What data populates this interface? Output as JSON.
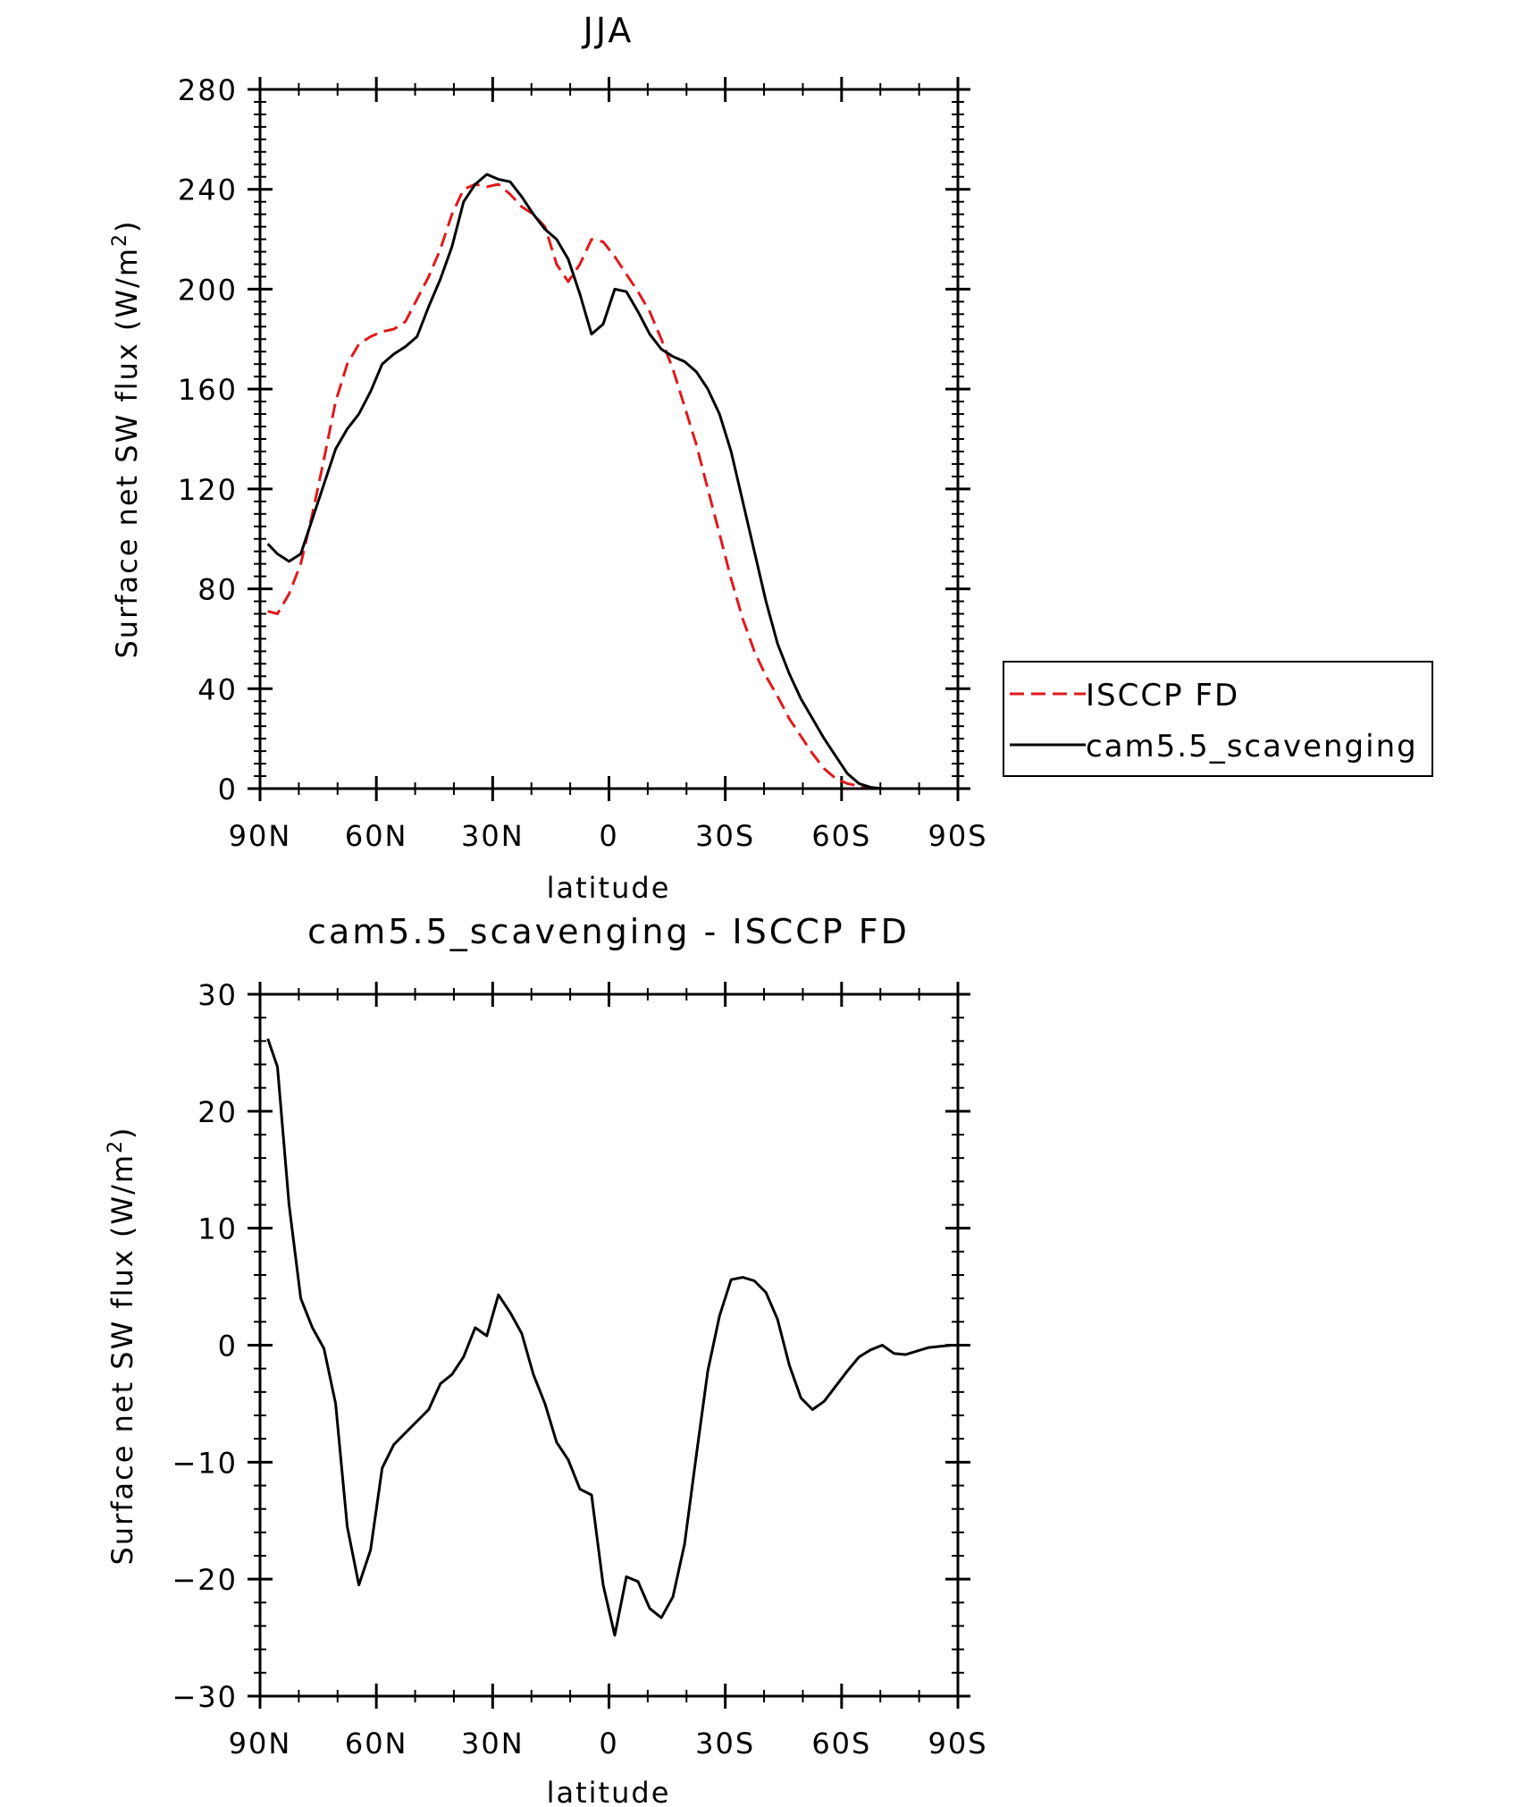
{
  "chart_data": [
    {
      "type": "line",
      "title": "JJA",
      "xlabel": "latitude",
      "ylabel": "Surface net SW flux (W/m",
      "ylabel_sup": "2",
      "ylabel_close": ")",
      "x_ticks": [
        {
          "value": 90,
          "label": "90N"
        },
        {
          "value": 60,
          "label": "60N"
        },
        {
          "value": 30,
          "label": "30N"
        },
        {
          "value": 0,
          "label": "0"
        },
        {
          "value": -30,
          "label": "30S"
        },
        {
          "value": -60,
          "label": "60S"
        },
        {
          "value": -90,
          "label": "90S"
        }
      ],
      "xlim": [
        90,
        -90
      ],
      "ylim": [
        0,
        280
      ],
      "y_ticks": [
        0,
        40,
        80,
        120,
        160,
        200,
        240,
        280
      ],
      "y_minor": 8,
      "legend": {
        "placement": "right, outside plot",
        "entries": [
          "ISCCP FD",
          "cam5.5_scavenging"
        ]
      },
      "series": [
        {
          "name": "ISCCP FD",
          "color": "#e0191c",
          "dash": true,
          "x": [
            88,
            85.5,
            82.5,
            79.5,
            76.5,
            73.5,
            70.5,
            67.5,
            64.5,
            61.5,
            58.5,
            55.5,
            52.5,
            49.5,
            46.5,
            43.5,
            40.5,
            37.5,
            34.5,
            31.5,
            28.5,
            25.5,
            22.5,
            19.5,
            16.5,
            13.5,
            10.5,
            7.5,
            4.5,
            1.5,
            -1.5,
            -4.5,
            -7.5,
            -10.5,
            -13.5,
            -16.5,
            -19.5,
            -22.5,
            -25.5,
            -28.5,
            -31.5,
            -34.5,
            -37.5,
            -40.5,
            -43.5,
            -46.5,
            -49.5,
            -52.5,
            -55.5,
            -58.5,
            -61.5,
            -64.5,
            -67.5,
            -70.5,
            -73.5,
            -76.5,
            -79.5,
            -82.5,
            -85.5,
            -88.5
          ],
          "values": [
            71,
            70,
            78,
            90,
            110,
            132,
            155,
            170,
            178,
            181,
            183,
            184,
            187,
            196,
            205,
            216,
            230,
            240,
            242,
            241,
            242,
            238,
            233,
            230,
            225,
            210,
            203,
            210,
            220,
            219,
            213,
            206,
            199,
            191,
            180,
            168,
            153,
            138,
            120,
            102,
            84,
            68,
            55,
            45,
            37,
            28,
            21,
            14,
            8,
            4,
            2,
            1,
            0,
            0,
            0,
            0,
            0,
            0,
            0,
            0
          ]
        },
        {
          "name": "cam5.5_scavenging",
          "color": "#000000",
          "dash": false,
          "x": [
            88,
            85.5,
            82.5,
            79.5,
            76.5,
            73.5,
            70.5,
            67.5,
            64.5,
            61.5,
            58.5,
            55.5,
            52.5,
            49.5,
            46.5,
            43.5,
            40.5,
            37.5,
            34.5,
            31.5,
            28.5,
            25.5,
            22.5,
            19.5,
            16.5,
            13.5,
            10.5,
            7.5,
            4.5,
            1.5,
            -1.5,
            -4.5,
            -7.5,
            -10.5,
            -13.5,
            -16.5,
            -19.5,
            -22.5,
            -25.5,
            -28.5,
            -31.5,
            -34.5,
            -37.5,
            -40.5,
            -43.5,
            -46.5,
            -49.5,
            -52.5,
            -55.5,
            -58.5,
            -61.5,
            -64.5,
            -67.5,
            -70.5,
            -73.5,
            -76.5,
            -79.5,
            -82.5,
            -85.5,
            -88.5
          ],
          "values": [
            98,
            94,
            91,
            94,
            108,
            122,
            136,
            144,
            150,
            159,
            170,
            174,
            177,
            181,
            193,
            204,
            217,
            235,
            242,
            246,
            244,
            243,
            237,
            230,
            224,
            220,
            212,
            198,
            182,
            186,
            200,
            199,
            191,
            182,
            176,
            173,
            171,
            167,
            160,
            150,
            135,
            115,
            95,
            75,
            58,
            46,
            36,
            28,
            20,
            13,
            6,
            2,
            0.5,
            0,
            0,
            0,
            0,
            0,
            0,
            0
          ]
        }
      ]
    },
    {
      "type": "line",
      "title": "cam5.5_scavenging - ISCCP FD",
      "xlabel": "latitude",
      "ylabel": "Surface net SW flux (W/m",
      "ylabel_sup": "2",
      "ylabel_close": ")",
      "x_ticks": [
        {
          "value": 90,
          "label": "90N"
        },
        {
          "value": 60,
          "label": "60N"
        },
        {
          "value": 30,
          "label": "30N"
        },
        {
          "value": 0,
          "label": "0"
        },
        {
          "value": -30,
          "label": "30S"
        },
        {
          "value": -60,
          "label": "60S"
        },
        {
          "value": -90,
          "label": "90S"
        }
      ],
      "xlim": [
        90,
        -90
      ],
      "ylim": [
        -30,
        30
      ],
      "y_ticks": [
        -30,
        -20,
        -10,
        0,
        10,
        20,
        30
      ],
      "y_tick_labels": [
        "−30",
        "−20",
        "−10",
        "0",
        "10",
        "20",
        "30"
      ],
      "y_minor": 5,
      "series": [
        {
          "color": "#000000",
          "dash": false,
          "x": [
            88,
            85.5,
            82.5,
            79.5,
            76.5,
            73.5,
            70.5,
            67.5,
            64.5,
            61.5,
            58.5,
            55.5,
            52.5,
            49.5,
            46.5,
            43.5,
            40.5,
            37.5,
            34.5,
            31.5,
            28.5,
            25.5,
            22.5,
            19.5,
            16.5,
            13.5,
            10.5,
            7.5,
            4.5,
            1.5,
            -1.5,
            -4.5,
            -7.5,
            -10.5,
            -13.5,
            -16.5,
            -19.5,
            -22.5,
            -25.5,
            -28.5,
            -31.5,
            -34.5,
            -37.5,
            -40.5,
            -43.5,
            -46.5,
            -49.5,
            -52.5,
            -55.5,
            -58.5,
            -61.5,
            -64.5,
            -67.5,
            -70.5,
            -73.5,
            -76.5,
            -79.5,
            -82.5,
            -85.5,
            -88.5
          ],
          "values": [
            26.2,
            23.8,
            12.0,
            4.0,
            1.5,
            -0.3,
            -5.0,
            -15.5,
            -20.5,
            -17.5,
            -10.5,
            -8.5,
            -7.5,
            -6.5,
            -5.5,
            -3.3,
            -2.5,
            -1.0,
            1.5,
            0.8,
            4.3,
            2.8,
            1.0,
            -2.5,
            -5.0,
            -8.3,
            -9.8,
            -12.3,
            -12.8,
            -20.5,
            -24.8,
            -19.8,
            -20.2,
            -22.5,
            -23.3,
            -21.5,
            -17.0,
            -9.5,
            -2.2,
            2.5,
            5.6,
            5.8,
            5.5,
            4.5,
            2.2,
            -1.7,
            -4.5,
            -5.5,
            -4.8,
            -3.5,
            -2.2,
            -1.0,
            -0.4,
            0.0,
            -0.7,
            -0.8,
            -0.5,
            -0.2,
            -0.1,
            0.0
          ]
        }
      ]
    }
  ]
}
